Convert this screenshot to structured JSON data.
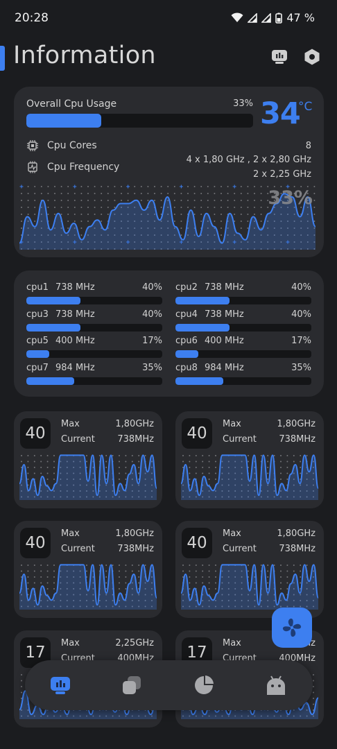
{
  "status_bar": {
    "time": "20:28",
    "battery": "47 %"
  },
  "header": {
    "title": "Information",
    "left_icon": "chip-info-icon",
    "right_icon": "settings-hex-icon"
  },
  "overall": {
    "label": "Overall Cpu Usage",
    "percent": "33%",
    "usage_fraction": 0.33,
    "temperature": "34",
    "temperature_unit": "°C",
    "cores_label": "Cpu Cores",
    "cores_value": "8",
    "freq_label": "Cpu Frequency",
    "freq_line1": "4 x 1,80 GHz , 2 x 2,80 GHz",
    "freq_line2": "2 x 2,25 GHz",
    "graph_percent": "33%"
  },
  "cores": [
    {
      "name": "cpu1",
      "freq": "738 MHz",
      "percent": "40%",
      "load": 0.4
    },
    {
      "name": "cpu2",
      "freq": "738 MHz",
      "percent": "40%",
      "load": 0.4
    },
    {
      "name": "cpu3",
      "freq": "738 MHz",
      "percent": "40%",
      "load": 0.4
    },
    {
      "name": "cpu4",
      "freq": "738 MHz",
      "percent": "40%",
      "load": 0.4
    },
    {
      "name": "cpu5",
      "freq": "400 MHz",
      "percent": "17%",
      "load": 0.17
    },
    {
      "name": "cpu6",
      "freq": "400 MHz",
      "percent": "17%",
      "load": 0.17
    },
    {
      "name": "cpu7",
      "freq": "984 MHz",
      "percent": "35%",
      "load": 0.35
    },
    {
      "name": "cpu8",
      "freq": "984 MHz",
      "percent": "35%",
      "load": 0.35
    }
  ],
  "core_cards": [
    {
      "load": "40",
      "max_label": "Max",
      "max_value": "1,80GHz",
      "current_label": "Current",
      "current_value": "738MHz"
    },
    {
      "load": "40",
      "max_label": "Max",
      "max_value": "1,80GHz",
      "current_label": "Current",
      "current_value": "738MHz"
    },
    {
      "load": "40",
      "max_label": "Max",
      "max_value": "1,80GHz",
      "current_label": "Current",
      "current_value": "738MHz"
    },
    {
      "load": "40",
      "max_label": "Max",
      "max_value": "1,80GHz",
      "current_label": "Current",
      "current_value": "738MHz"
    },
    {
      "load": "17",
      "max_label": "Max",
      "max_value": "2,25GHz",
      "current_label": "Current",
      "current_value": "400MHz"
    },
    {
      "load": "17",
      "max_label": "Max",
      "max_value": "2,25GHz",
      "current_label": "Current",
      "current_value": "400MHz"
    }
  ],
  "fab": {
    "icon": "fan-icon"
  },
  "bottom_nav": [
    {
      "id": "info",
      "icon": "chip-info-icon",
      "active": true
    },
    {
      "id": "apps",
      "icon": "stacked-squares-icon",
      "active": false
    },
    {
      "id": "storage",
      "icon": "pie-chart-icon",
      "active": false
    },
    {
      "id": "android",
      "icon": "android-icon",
      "active": false
    }
  ],
  "colors": {
    "accent": "#3d7ff0",
    "background": "#1b1c1f",
    "card": "#2a2b2f",
    "track": "#141517"
  }
}
